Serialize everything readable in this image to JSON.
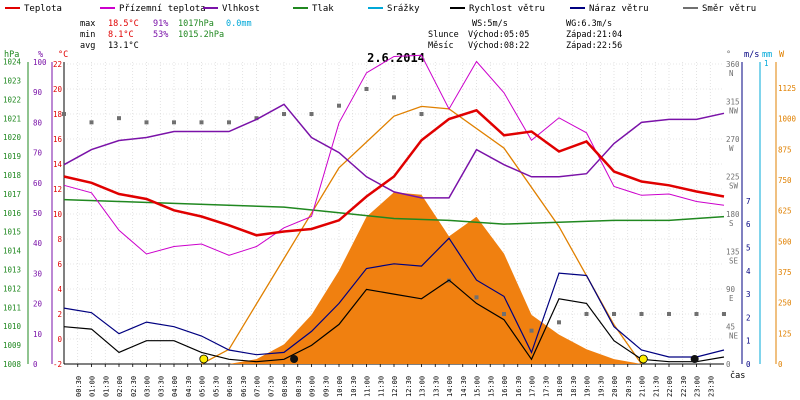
{
  "chart_data": {
    "type": "line",
    "title": "2.6.2014",
    "legend": [
      {
        "name": "Teplota",
        "color": "#e00000"
      },
      {
        "name": "Přízemní teplota",
        "color": "#cc00cc"
      },
      {
        "name": "Vlhkost",
        "color": "#7a12a8"
      },
      {
        "name": "Tlak",
        "color": "#208820"
      },
      {
        "name": "Srážky",
        "color": "#00a8d8"
      },
      {
        "name": "Rychlost větru",
        "color": "#000000"
      },
      {
        "name": "Náraz větru",
        "color": "#000080"
      },
      {
        "name": "Směr větru",
        "color": "#707070"
      }
    ],
    "stats": {
      "max": {
        "label": "max",
        "temp": "18.5°C",
        "hum": "91%",
        "press": "1017hPa",
        "rain": "0.0mm"
      },
      "min": {
        "label": "min",
        "temp": "8.1°C",
        "hum": "53%",
        "press": "1015.2hPa"
      },
      "avg": {
        "label": "avg",
        "temp": "13.1°C"
      }
    },
    "wind_info": {
      "ws": "WS:5m/s",
      "wg": "WG:6.3m/s"
    },
    "sun": {
      "label": "Slunce",
      "rise": "Východ:05:05",
      "set": "Západ:21:04"
    },
    "moon": {
      "label": "Měsíc",
      "rise": "Východ:08:22",
      "set": "Západ:22:56"
    },
    "axes": {
      "hpa_label": "hPa",
      "pct_label": "%",
      "temp_label": "°C",
      "deg_label": "°",
      "ms_label": "m/s",
      "mm_label": "mm",
      "w_label": "W",
      "x_label": "čas",
      "hpa_ticks": [
        "1024",
        "1023",
        "1022",
        "1021",
        "1020",
        "1019",
        "1018",
        "1017",
        "1016",
        "1015",
        "1014",
        "1013",
        "1012",
        "1011",
        "1010",
        "1009",
        "1008"
      ],
      "pct_ticks": [
        "100",
        "90",
        "80",
        "70",
        "60",
        "50",
        "40",
        "30",
        "20",
        "10",
        "0"
      ],
      "temp_ticks": [
        "22",
        "20",
        "18",
        "16",
        "14",
        "12",
        "10",
        "8",
        "6",
        "4",
        "2",
        "0",
        "-2"
      ],
      "dir_ticks": [
        {
          "v": "360",
          "d": "N"
        },
        {
          "v": "315",
          "d": "NW"
        },
        {
          "v": "270",
          "d": "W"
        },
        {
          "v": "225",
          "d": "SW"
        },
        {
          "v": "180",
          "d": "S"
        },
        {
          "v": "135",
          "d": "SE"
        },
        {
          "v": "90",
          "d": "E"
        },
        {
          "v": "45",
          "d": "NE"
        },
        {
          "v": "0",
          "d": ""
        }
      ],
      "ms_ticks": [
        "7",
        "6",
        "5",
        "4",
        "3",
        "2",
        "1",
        "0"
      ],
      "mm_ticks": [
        "1"
      ],
      "w_ticks": [
        "1125",
        "1000",
        "875",
        "750",
        "625",
        "500",
        "375",
        "250",
        "125",
        "0"
      ],
      "time_ticks": [
        "00:30",
        "01:00",
        "01:30",
        "02:00",
        "02:30",
        "03:00",
        "03:30",
        "04:00",
        "04:30",
        "05:00",
        "05:30",
        "06:00",
        "06:30",
        "07:00",
        "07:30",
        "08:00",
        "08:30",
        "09:00",
        "09:30",
        "10:00",
        "10:30",
        "11:00",
        "11:30",
        "12:00",
        "12:30",
        "13:00",
        "13:30",
        "14:00",
        "14:30",
        "15:00",
        "15:30",
        "16:00",
        "16:30",
        "17:00",
        "17:30",
        "18:00",
        "18:30",
        "19:00",
        "19:30",
        "20:00",
        "20:30",
        "21:00",
        "21:30",
        "22:00",
        "22:30",
        "23:00",
        "23:30"
      ]
    },
    "series": [
      {
        "name": "Teplota",
        "unit": "°C",
        "x": [
          0,
          1,
          2,
          3,
          4,
          5,
          6,
          7,
          8,
          9,
          10,
          11,
          12,
          13,
          14,
          15,
          16,
          17,
          18,
          19,
          20,
          21,
          22,
          23,
          24
        ],
        "values": [
          13.0,
          12.5,
          11.6,
          11.2,
          10.3,
          9.8,
          9.1,
          8.3,
          8.6,
          8.8,
          9.5,
          11.4,
          13.0,
          15.9,
          17.6,
          18.3,
          16.3,
          16.6,
          15.0,
          15.8,
          13.4,
          12.6,
          12.3,
          11.8,
          11.4
        ]
      },
      {
        "name": "Přízemní teplota",
        "unit": "°C",
        "x": [
          0,
          1,
          2,
          3,
          4,
          5,
          6,
          7,
          8,
          9,
          10,
          11,
          12,
          13,
          14,
          15,
          16,
          17,
          18,
          19,
          20,
          21,
          22,
          23,
          24
        ],
        "values": [
          12.3,
          11.7,
          8.7,
          6.8,
          7.4,
          7.6,
          6.7,
          7.4,
          8.9,
          9.8,
          17.3,
          21.3,
          22.6,
          22.7,
          18.4,
          22.2,
          19.7,
          15.9,
          17.7,
          16.5,
          12.2,
          11.5,
          11.6,
          11.0,
          10.7
        ]
      },
      {
        "name": "Vlhkost",
        "unit": "%",
        "x": [
          0,
          1,
          2,
          3,
          4,
          5,
          6,
          7,
          8,
          9,
          10,
          11,
          12,
          13,
          14,
          15,
          16,
          17,
          18,
          19,
          20,
          21,
          22,
          23,
          24
        ],
        "values": [
          66,
          71,
          74,
          75,
          77,
          77,
          77,
          81,
          86,
          75,
          70,
          62,
          57,
          55,
          55,
          71,
          66,
          62,
          62,
          63,
          73,
          80,
          81,
          81,
          83
        ]
      },
      {
        "name": "Tlak",
        "unit": "hPa",
        "x": [
          0,
          2,
          4,
          6,
          8,
          10,
          12,
          14,
          16,
          18,
          20,
          22,
          24
        ],
        "values": [
          1016.7,
          1016.6,
          1016.5,
          1016.4,
          1016.3,
          1016.0,
          1015.7,
          1015.6,
          1015.4,
          1015.5,
          1015.6,
          1015.6,
          1015.8
        ]
      },
      {
        "name": "Rychlost větru",
        "unit": "m/s",
        "x": [
          0,
          1,
          2,
          3,
          4,
          5,
          6,
          7,
          8,
          9,
          10,
          11,
          12,
          13,
          14,
          15,
          16,
          17,
          18,
          19,
          20,
          21,
          22,
          23,
          24
        ],
        "values": [
          1.6,
          1.5,
          0.5,
          1.0,
          1.0,
          0.5,
          0.2,
          0.1,
          0.2,
          0.8,
          1.7,
          3.2,
          3.0,
          2.8,
          3.6,
          2.6,
          1.9,
          0.2,
          2.8,
          2.6,
          1.0,
          0.2,
          0.1,
          0.1,
          0.3
        ]
      },
      {
        "name": "Náraz větru",
        "unit": "m/s",
        "x": [
          0,
          1,
          2,
          3,
          4,
          5,
          6,
          7,
          8,
          9,
          10,
          11,
          12,
          13,
          14,
          15,
          16,
          17,
          18,
          19,
          20,
          21,
          22,
          23,
          24
        ],
        "values": [
          2.4,
          2.2,
          1.3,
          1.8,
          1.6,
          1.2,
          0.6,
          0.4,
          0.5,
          1.4,
          2.6,
          4.1,
          4.3,
          4.2,
          5.4,
          3.6,
          2.9,
          0.5,
          3.9,
          3.8,
          1.6,
          0.6,
          0.3,
          0.3,
          0.6
        ]
      },
      {
        "name": "Směr větru",
        "unit": "°",
        "x": [
          0,
          1,
          2,
          3,
          4,
          5,
          6,
          7,
          8,
          9,
          10,
          11,
          12,
          13,
          14,
          15,
          16,
          17,
          18,
          19,
          20,
          21,
          22,
          23,
          24
        ],
        "values": [
          300,
          290,
          295,
          290,
          290,
          290,
          290,
          295,
          300,
          300,
          310,
          330,
          320,
          300,
          100,
          80,
          60,
          40,
          50,
          60,
          60,
          60,
          60,
          60,
          60
        ]
      },
      {
        "name": "Solar",
        "unit": "W",
        "x": [
          6,
          7,
          8,
          9,
          10,
          11,
          12,
          13,
          14,
          15,
          16,
          17,
          18,
          19,
          20,
          21
        ],
        "values": [
          0,
          20,
          80,
          200,
          380,
          600,
          700,
          690,
          520,
          600,
          450,
          200,
          120,
          60,
          20,
          0
        ]
      },
      {
        "name": "Solar max",
        "unit": "W",
        "x": [
          5,
          6,
          8,
          10,
          12,
          13,
          14,
          16,
          18,
          20,
          21
        ],
        "values": [
          0,
          60,
          430,
          800,
          1010,
          1050,
          1040,
          880,
          560,
          160,
          0
        ]
      }
    ]
  }
}
